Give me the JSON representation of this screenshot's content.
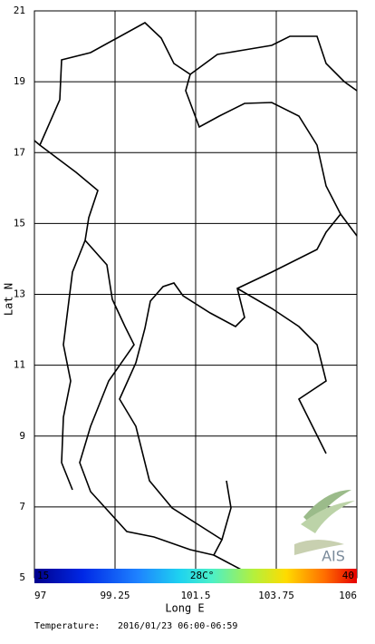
{
  "chart_data": {
    "type": "map",
    "xlabel": "Long E",
    "ylabel": "Lat N",
    "xlim": [
      97,
      106
    ],
    "ylim": [
      5,
      21
    ],
    "xticks": [
      97,
      99.25,
      101.5,
      103.75,
      106
    ],
    "yticks": [
      5,
      7,
      9,
      11,
      13,
      15,
      17,
      19,
      21
    ],
    "grid": true,
    "colorbar": {
      "lim": [
        15,
        40
      ],
      "ticks": [
        15,
        {
          "value": 28,
          "label": "28C°"
        },
        40
      ]
    }
  },
  "footer": {
    "variable": "Temperature:",
    "time": "2016/01/23 06:00-06:59"
  },
  "logo": {
    "text": "AIS"
  }
}
